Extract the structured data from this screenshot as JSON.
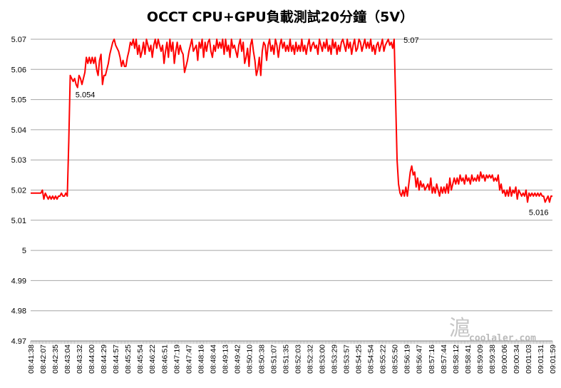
{
  "chart_data": {
    "type": "line",
    "title": "OCCT CPU+GPU負載測試20分鐘（5V）",
    "xlabel": "",
    "ylabel": "",
    "ylim": [
      4.97,
      5.07
    ],
    "y_ticks": [
      "5.07",
      "5.06",
      "5.05",
      "5.04",
      "5.03",
      "5.02",
      "5.01",
      "5",
      "4.99",
      "4.98",
      "4.97"
    ],
    "x_ticks": [
      "08:41:38",
      "08:42:07",
      "08:42:35",
      "08:43:04",
      "08:43:32",
      "08:44:00",
      "08:44:29",
      "08:44:57",
      "08:45:25",
      "08:45:54",
      "08:46:22",
      "08:46:51",
      "08:47:19",
      "08:47:47",
      "08:48:16",
      "08:48:44",
      "08:49:13",
      "08:49:42",
      "08:50:10",
      "08:50:38",
      "08:51:07",
      "08:51:35",
      "08:52:03",
      "08:52:32",
      "08:53:00",
      "08:53:29",
      "08:53:57",
      "08:54:25",
      "08:54:54",
      "08:55:22",
      "08:55:50",
      "08:56:19",
      "08:56:47",
      "08:57:16",
      "08:57:44",
      "08:58:12",
      "08:58:41",
      "08:59:09",
      "08:59:38",
      "09:00:06",
      "09:00:34",
      "09:01:03",
      "09:01:31",
      "09:01:59"
    ],
    "grid": true,
    "legend": "none",
    "line_color": "#ff0000",
    "series": [
      {
        "values": [
          5.019,
          5.019,
          5.019,
          5.019,
          5.019,
          5.019,
          5.019,
          5.019,
          5.02,
          5.017,
          5.019,
          5.018,
          5.017,
          5.018,
          5.017,
          5.018,
          5.017,
          5.018,
          5.017,
          5.018,
          5.018,
          5.019,
          5.018,
          5.018,
          5.019,
          5.018,
          5.036,
          5.058,
          5.057,
          5.056,
          5.057,
          5.055,
          5.054,
          5.058,
          5.057,
          5.055,
          5.057,
          5.059,
          5.064,
          5.062,
          5.064,
          5.062,
          5.064,
          5.062,
          5.064,
          5.06,
          5.058,
          5.063,
          5.065,
          5.055,
          5.058,
          5.058,
          5.06,
          5.062,
          5.065,
          5.067,
          5.069,
          5.07,
          5.068,
          5.067,
          5.066,
          5.064,
          5.061,
          5.063,
          5.061,
          5.061,
          5.064,
          5.066,
          5.069,
          5.068,
          5.07,
          5.067,
          5.07,
          5.065,
          5.068,
          5.064,
          5.066,
          5.069,
          5.065,
          5.07,
          5.068,
          5.066,
          5.068,
          5.064,
          5.068,
          5.07,
          5.067,
          5.07,
          5.068,
          5.066,
          5.068,
          5.062,
          5.066,
          5.069,
          5.064,
          5.07,
          5.066,
          5.069,
          5.062,
          5.066,
          5.069,
          5.065,
          5.068,
          5.066,
          5.065,
          5.059,
          5.061,
          5.063,
          5.066,
          5.068,
          5.07,
          5.066,
          5.067,
          5.068,
          5.063,
          5.069,
          5.067,
          5.07,
          5.064,
          5.069,
          5.066,
          5.069,
          5.07,
          5.066,
          5.064,
          5.068,
          5.066,
          5.07,
          5.067,
          5.069,
          5.067,
          5.07,
          5.065,
          5.07,
          5.066,
          5.068,
          5.064,
          5.07,
          5.067,
          5.068,
          5.066,
          5.064,
          5.068,
          5.07,
          5.066,
          5.069,
          5.062,
          5.064,
          5.067,
          5.061,
          5.068,
          5.07,
          5.066,
          5.063,
          5.058,
          5.06,
          5.064,
          5.058,
          5.066,
          5.069,
          5.068,
          5.063,
          5.068,
          5.07,
          5.066,
          5.068,
          5.065,
          5.07,
          5.068,
          5.064,
          5.068,
          5.07,
          5.067,
          5.069,
          5.066,
          5.068,
          5.066,
          5.07,
          5.066,
          5.068,
          5.065,
          5.069,
          5.066,
          5.068,
          5.066,
          5.07,
          5.066,
          5.068,
          5.065,
          5.068,
          5.07,
          5.066,
          5.068,
          5.069,
          5.067,
          5.068,
          5.065,
          5.07,
          5.068,
          5.066,
          5.069,
          5.067,
          5.07,
          5.066,
          5.068,
          5.065,
          5.07,
          5.067,
          5.069,
          5.065,
          5.068,
          5.066,
          5.069,
          5.07,
          5.068,
          5.066,
          5.07,
          5.067,
          5.069,
          5.065,
          5.068,
          5.07,
          5.066,
          5.067,
          5.07,
          5.069,
          5.066,
          5.068,
          5.07,
          5.067,
          5.069,
          5.067,
          5.07,
          5.066,
          5.068,
          5.065,
          5.068,
          5.069,
          5.066,
          5.068,
          5.07,
          5.066,
          5.068,
          5.069,
          5.07,
          5.068,
          5.069,
          5.067,
          5.07,
          5.05,
          5.03,
          5.022,
          5.019,
          5.018,
          5.02,
          5.018,
          5.021,
          5.018,
          5.022,
          5.026,
          5.028,
          5.025,
          5.026,
          5.021,
          5.024,
          5.02,
          5.023,
          5.021,
          5.022,
          5.02,
          5.021,
          5.022,
          5.02,
          5.024,
          5.019,
          5.021,
          5.019,
          5.022,
          5.02,
          5.018,
          5.021,
          5.019,
          5.021,
          5.019,
          5.022,
          5.019,
          5.024,
          5.02,
          5.022,
          5.024,
          5.022,
          5.024,
          5.022,
          5.025,
          5.023,
          5.024,
          5.022,
          5.025,
          5.023,
          5.024,
          5.022,
          5.025,
          5.023,
          5.024,
          5.023,
          5.025,
          5.023,
          5.026,
          5.024,
          5.025,
          5.023,
          5.025,
          5.024,
          5.025,
          5.024,
          5.025,
          5.023,
          5.024,
          5.023,
          5.025,
          5.02,
          5.022,
          5.019,
          5.02,
          5.018,
          5.02,
          5.018,
          5.021,
          5.018,
          5.02,
          5.019,
          5.021,
          5.017,
          5.02,
          5.019,
          5.018,
          5.019,
          5.018,
          5.02,
          5.016,
          5.019,
          5.018,
          5.019,
          5.018,
          5.019,
          5.018,
          5.019,
          5.018,
          5.019,
          5.018,
          5.018,
          5.016,
          5.017,
          5.018,
          5.016,
          5.018,
          5.018
        ]
      }
    ],
    "annotations": [
      {
        "text": "5.054",
        "index": 32,
        "value": 5.054
      },
      {
        "text": "5.07",
        "index": 252,
        "value": 5.07
      },
      {
        "text": "5.016",
        "index": 346,
        "value": 5.016
      }
    ],
    "watermark": {
      "glyph": "滬",
      "text": "coolaler.com"
    }
  }
}
